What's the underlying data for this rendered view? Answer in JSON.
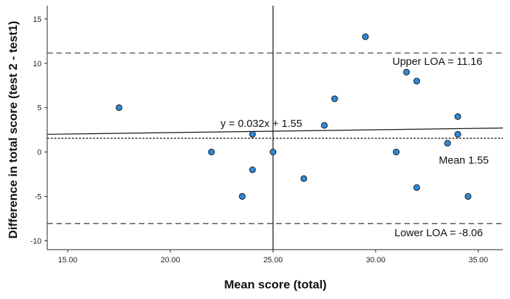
{
  "chart_data": {
    "type": "scatter",
    "title": "",
    "xlabel": "Mean score (total)",
    "ylabel": "Difference in total score (test 2 - test1)",
    "xlim": [
      14,
      36.2
    ],
    "ylim": [
      -11,
      16.5
    ],
    "xticks": [
      15,
      20,
      25,
      30,
      35
    ],
    "xtick_labels": [
      "15.00",
      "20.00",
      "25.00",
      "30.00",
      "35.00"
    ],
    "yticks": [
      -10,
      -5,
      0,
      5,
      10,
      15
    ],
    "ytick_labels": [
      "-10",
      "-5",
      "0",
      "5",
      "10",
      "15"
    ],
    "grid": false,
    "points": [
      {
        "x": 17.5,
        "y": 5
      },
      {
        "x": 22,
        "y": 0
      },
      {
        "x": 23.5,
        "y": -5
      },
      {
        "x": 24,
        "y": 2
      },
      {
        "x": 24,
        "y": -2
      },
      {
        "x": 25,
        "y": 0
      },
      {
        "x": 26.5,
        "y": -3
      },
      {
        "x": 27.5,
        "y": 3
      },
      {
        "x": 28,
        "y": 6
      },
      {
        "x": 29.5,
        "y": 13
      },
      {
        "x": 31,
        "y": 0
      },
      {
        "x": 31.5,
        "y": 9
      },
      {
        "x": 32,
        "y": 8
      },
      {
        "x": 32,
        "y": -4
      },
      {
        "x": 33.5,
        "y": 1
      },
      {
        "x": 34,
        "y": 4
      },
      {
        "x": 34,
        "y": 2
      },
      {
        "x": 34.5,
        "y": -5
      }
    ],
    "marker_color": "#2e8ad8",
    "reference_lines": {
      "upper_loa": {
        "value": 11.16,
        "label": "Upper LOA = 11.16",
        "style": "dashed"
      },
      "mean": {
        "value": 1.55,
        "label": "Mean 1.55",
        "style": "dotted"
      },
      "lower_loa": {
        "value": -8.06,
        "label": "Lower LOA = -8.06",
        "style": "dashed"
      },
      "vertical_x": 25
    },
    "regression": {
      "slope": 0.032,
      "intercept": 1.55,
      "label": "y = 0.032x + 1.55"
    }
  }
}
